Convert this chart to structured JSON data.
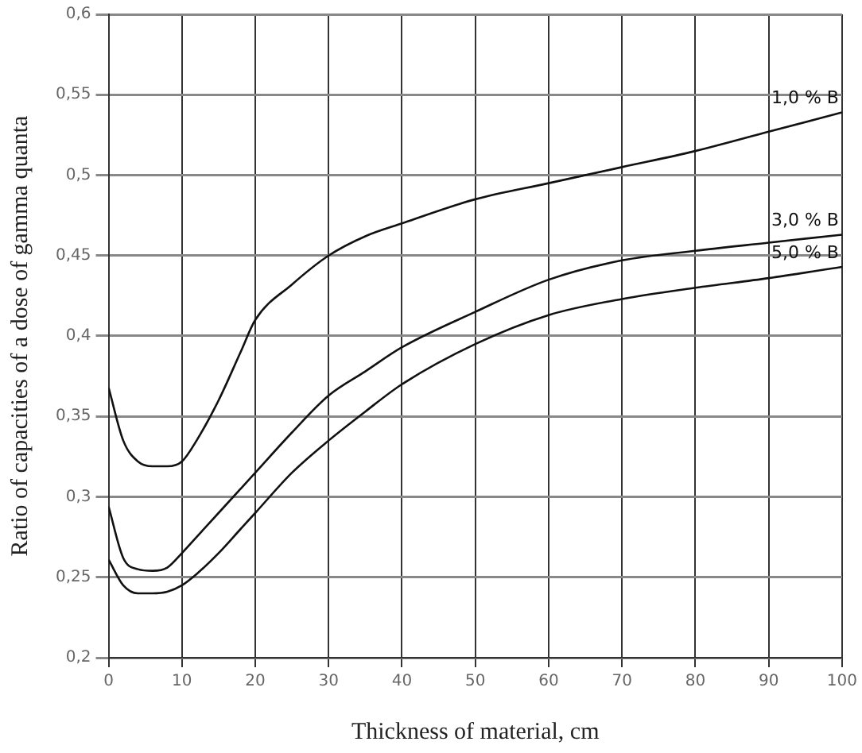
{
  "chart_data": {
    "type": "line",
    "xlabel": "Thickness of material, cm",
    "ylabel": "Ratio of capacities of a dose of gamma quanta",
    "x": [
      0,
      2,
      4,
      6,
      8,
      10,
      12,
      15,
      18,
      20,
      25,
      30,
      35,
      40,
      50,
      60,
      70,
      80,
      90,
      100
    ],
    "series": [
      {
        "name": "1,0 % B",
        "color": "#111111",
        "values": [
          0.368,
          0.335,
          0.322,
          0.319,
          0.319,
          0.322,
          0.335,
          0.36,
          0.39,
          0.41,
          0.432,
          0.45,
          0.462,
          0.47,
          0.485,
          0.495,
          0.505,
          0.515,
          0.527,
          0.539
        ]
      },
      {
        "name": "3,0 % B",
        "color": "#111111",
        "values": [
          0.294,
          0.262,
          0.255,
          0.254,
          0.256,
          0.265,
          0.275,
          0.29,
          0.305,
          0.315,
          0.34,
          0.363,
          0.378,
          0.393,
          0.415,
          0.435,
          0.447,
          0.453,
          0.458,
          0.463
        ]
      },
      {
        "name": "5,0 % B",
        "color": "#111111",
        "values": [
          0.261,
          0.245,
          0.24,
          0.24,
          0.241,
          0.245,
          0.252,
          0.265,
          0.28,
          0.29,
          0.315,
          0.335,
          0.353,
          0.37,
          0.395,
          0.413,
          0.423,
          0.43,
          0.436,
          0.443
        ]
      }
    ],
    "xlim": [
      0,
      100
    ],
    "xticks": [
      0,
      10,
      20,
      30,
      40,
      50,
      60,
      70,
      80,
      90,
      100
    ],
    "ylim": [
      0.2,
      0.6
    ],
    "yticks": [
      {
        "value": 0.2,
        "label": "0,2"
      },
      {
        "value": 0.25,
        "label": "0,25"
      },
      {
        "value": 0.3,
        "label": "0,3"
      },
      {
        "value": 0.35,
        "label": "0,35"
      },
      {
        "value": 0.4,
        "label": "0,4"
      },
      {
        "value": 0.45,
        "label": "0,45"
      },
      {
        "value": 0.5,
        "label": "0,5"
      },
      {
        "value": 0.55,
        "label": "0,55"
      },
      {
        "value": 0.6,
        "label": "0,6"
      }
    ],
    "grid": true,
    "legend": false,
    "marker": "none",
    "line_style": "solid"
  }
}
